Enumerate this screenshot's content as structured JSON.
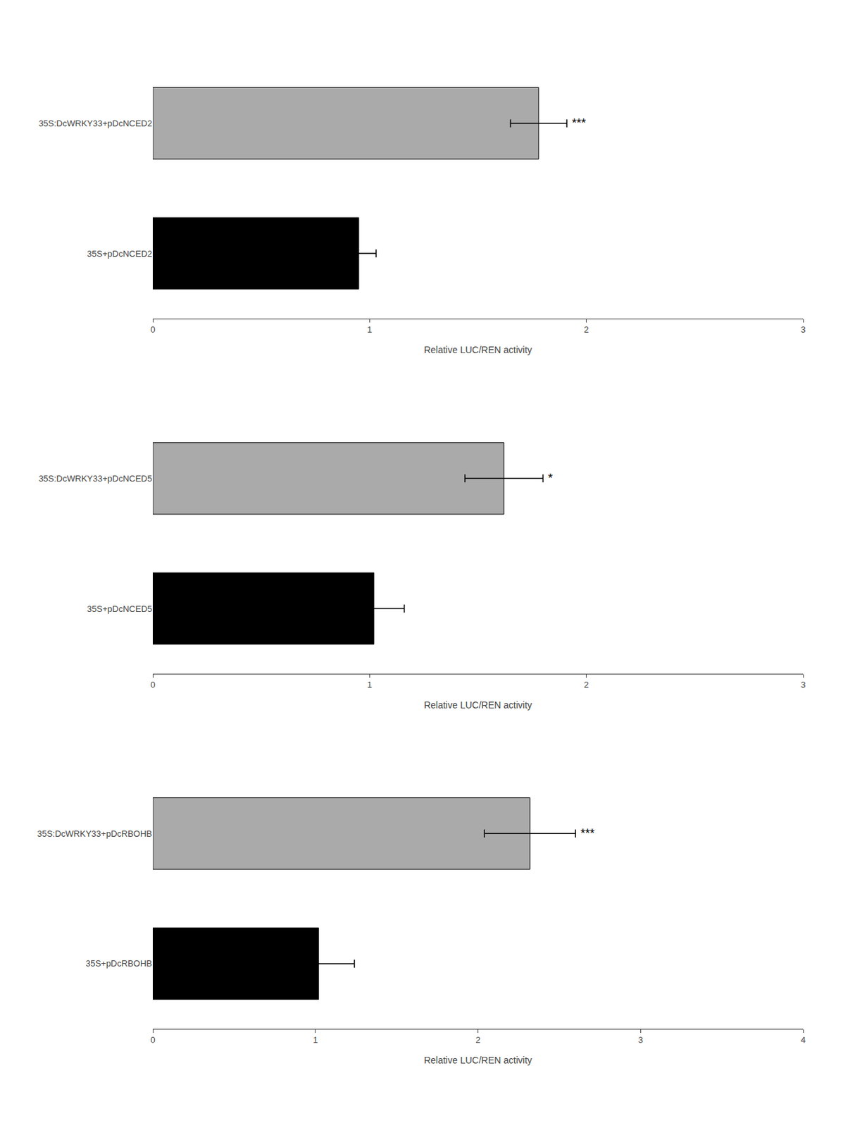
{
  "chart_data": [
    {
      "type": "bar",
      "orientation": "horizontal",
      "categories": [
        "35S:DcWRKY33+pDcNCED2",
        "35S+pDcNCED2"
      ],
      "values": [
        1.78,
        0.95
      ],
      "errors": [
        0.13,
        0.08
      ],
      "colors": [
        "#aaaaaa",
        "#000000"
      ],
      "xlim": [
        0,
        3
      ],
      "xticks": [
        0,
        1,
        2,
        3
      ],
      "xlabel": "Relative LUC/REN activity",
      "grid": false,
      "annotations": [
        {
          "text": "***",
          "category": "35S:DcWRKY33+pDcNCED2"
        }
      ]
    },
    {
      "type": "bar",
      "orientation": "horizontal",
      "categories": [
        "35S:DcWRKY33+pDcNCED5",
        "35S+pDcNCED5"
      ],
      "values": [
        1.62,
        1.02
      ],
      "errors": [
        0.18,
        0.14
      ],
      "colors": [
        "#aaaaaa",
        "#000000"
      ],
      "xlim": [
        0,
        3
      ],
      "xticks": [
        0,
        1,
        2,
        3
      ],
      "xlabel": "Relative LUC/REN activity",
      "grid": false,
      "annotations": [
        {
          "text": "*",
          "category": "35S:DcWRKY33+pDcNCED5"
        }
      ]
    },
    {
      "type": "bar",
      "orientation": "horizontal",
      "categories": [
        "35S:DcWRKY33+pDcRBOHB",
        "35S+pDcRBOHB"
      ],
      "values": [
        2.32,
        1.02
      ],
      "errors": [
        0.28,
        0.22
      ],
      "colors": [
        "#aaaaaa",
        "#000000"
      ],
      "xlim": [
        0,
        4
      ],
      "xticks": [
        0,
        1,
        2,
        3,
        4
      ],
      "xlabel": "Relative LUC/REN activity",
      "grid": false,
      "annotations": [
        {
          "text": "***",
          "category": "35S:DcWRKY33+pDcRBOHB"
        }
      ]
    }
  ]
}
